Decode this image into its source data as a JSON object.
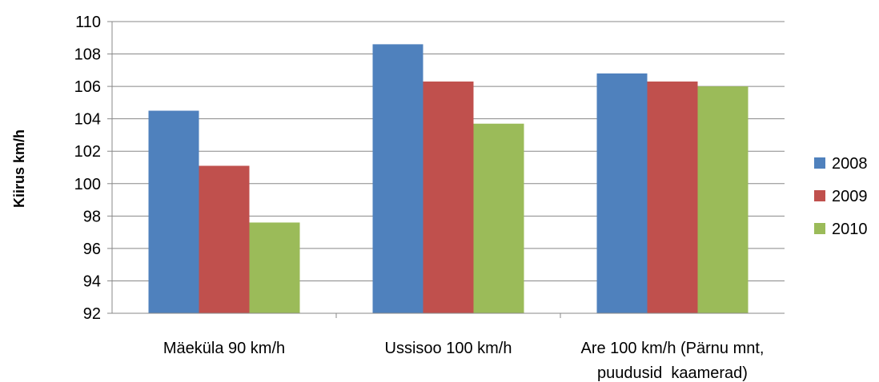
{
  "chart_data": {
    "type": "bar",
    "title": "",
    "xlabel": "",
    "ylabel": "Kiirus km/h",
    "ylim": [
      92,
      110
    ],
    "yticks": [
      92,
      94,
      96,
      98,
      100,
      102,
      104,
      106,
      108,
      110
    ],
    "grid": true,
    "legend_position": "right",
    "categories": [
      [
        "Mäeküla 90 km/h"
      ],
      [
        "Ussisoo 100 km/h"
      ],
      [
        "Are 100 km/h (Pärnu mnt,",
        "puudusid  kaamerad)"
      ]
    ],
    "series": [
      {
        "name": "2008",
        "color": "#4F81BD",
        "values": [
          104.5,
          108.6,
          106.8
        ]
      },
      {
        "name": "2009",
        "color": "#C0504D",
        "values": [
          101.1,
          106.3,
          106.3
        ]
      },
      {
        "name": "2010",
        "color": "#9BBB59",
        "values": [
          97.6,
          103.7,
          106.0
        ]
      }
    ]
  }
}
